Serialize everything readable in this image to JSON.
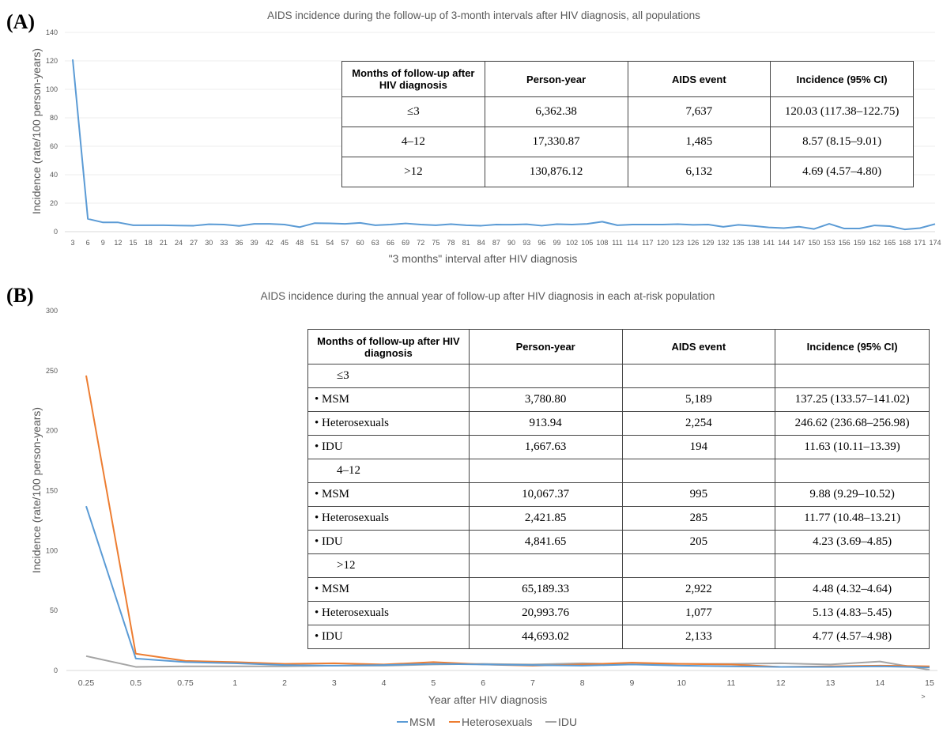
{
  "chart_data": [
    {
      "type": "line",
      "panel_label": "(A)",
      "title": "AIDS incidence during the follow-up of 3-month intervals after HIV diagnosis,  all populations",
      "xlabel": "\"3 months\" interval after HIV diagnosis",
      "ylabel": "Incidence (rate/100 person-years)",
      "ylim": [
        0,
        140
      ],
      "yticks": [
        0,
        20,
        40,
        60,
        80,
        100,
        120,
        140
      ],
      "grid": true,
      "x": [
        3,
        6,
        9,
        12,
        15,
        18,
        21,
        24,
        27,
        30,
        33,
        36,
        39,
        42,
        45,
        48,
        51,
        54,
        57,
        60,
        63,
        66,
        69,
        72,
        75,
        78,
        81,
        84,
        87,
        90,
        93,
        96,
        99,
        102,
        105,
        108,
        111,
        114,
        117,
        120,
        123,
        126,
        129,
        132,
        135,
        138,
        141,
        144,
        147,
        150,
        153,
        156,
        159,
        162,
        165,
        168,
        171,
        174
      ],
      "series": [
        {
          "color": "#5b9bd5",
          "values": [
            121,
            9,
            6.5,
            6.5,
            4.5,
            4.5,
            4.5,
            4.3,
            4.2,
            5.2,
            5,
            4,
            5.5,
            5.5,
            5,
            3.2,
            6,
            5.8,
            5.5,
            6.2,
            4.5,
            5,
            5.8,
            5,
            4.5,
            5.3,
            4.5,
            4.2,
            5,
            4.9,
            5.2,
            4.2,
            5.3,
            5,
            5.5,
            7,
            4.5,
            5,
            5,
            5,
            5.3,
            4.8,
            5,
            3.4,
            4.8,
            4,
            3,
            2.5,
            3.5,
            1.9,
            5.5,
            2.2,
            2.2,
            4.4,
            3.9,
            1.6,
            2.5,
            5.4
          ]
        }
      ],
      "table": {
        "headers": [
          "Months of follow-up after HIV diagnosis",
          "Person-year",
          "AIDS event",
          "Incidence (95% CI)"
        ],
        "rows": [
          [
            "≤3",
            "6,362.38",
            "7,637",
            "120.03 (117.38–122.75)"
          ],
          [
            "4–12",
            "17,330.87",
            "1,485",
            "8.57 (8.15–9.01)"
          ],
          [
            ">12",
            "130,876.12",
            "6,132",
            "4.69 (4.57–4.80)"
          ]
        ]
      }
    },
    {
      "type": "line",
      "panel_label": "(B)",
      "title": "AIDS incidence during the annual year of follow-up after HIV diagnosis in each at-risk population",
      "xlabel": "Year after HIV diagnosis",
      "ylabel": "Incidence (rate/100 person-years)",
      "ylim": [
        0,
        300
      ],
      "yticks": [
        0,
        50,
        100,
        150,
        200,
        250,
        300
      ],
      "grid": false,
      "categories": [
        "0.25",
        "0.5",
        "0.75",
        "1",
        "2",
        "3",
        "4",
        "5",
        "6",
        "7",
        "8",
        "9",
        "10",
        "11",
        "12",
        "13",
        "14",
        "15"
      ],
      "extra_tick": ">",
      "legend_position": "bottom",
      "series": [
        {
          "name": "MSM",
          "color": "#5b9bd5",
          "values": [
            137,
            10,
            7,
            6,
            4.5,
            4,
            4.5,
            5.5,
            5,
            4.5,
            4,
            5,
            4,
            3.5,
            3,
            3,
            3.5,
            2.5
          ]
        },
        {
          "name": "Heterosexuals",
          "color": "#ed7d31",
          "values": [
            246,
            14,
            8,
            7,
            5.5,
            6,
            5,
            7,
            5,
            4,
            5,
            6.5,
            5.5,
            5,
            3,
            3.5,
            4,
            3.5
          ]
        },
        {
          "name": "IDU",
          "color": "#a5a5a5",
          "values": [
            12,
            3,
            3.5,
            3.5,
            3.5,
            4,
            4,
            5,
            5.5,
            5,
            6,
            5,
            5.5,
            5.5,
            6,
            5,
            7.5,
            0.5
          ]
        }
      ],
      "table": {
        "headers": [
          "Months of follow-up after HIV diagnosis",
          "Person-year",
          "AIDS event",
          "Incidence (95% CI)"
        ],
        "groups": [
          {
            "label": "≤3",
            "rows": [
              [
                "• MSM",
                "3,780.80",
                "5,189",
                "137.25 (133.57–141.02)"
              ],
              [
                "• Heterosexuals",
                "913.94",
                "2,254",
                "246.62 (236.68–256.98)"
              ],
              [
                "• IDU",
                "1,667.63",
                "194",
                "11.63 (10.11–13.39)"
              ]
            ]
          },
          {
            "label": "4–12",
            "rows": [
              [
                "• MSM",
                "10,067.37",
                "995",
                "9.88 (9.29–10.52)"
              ],
              [
                "• Heterosexuals",
                "2,421.85",
                "285",
                "11.77 (10.48–13.21)"
              ],
              [
                "• IDU",
                "4,841.65",
                "205",
                "4.23 (3.69–4.85)"
              ]
            ]
          },
          {
            "label": ">12",
            "rows": [
              [
                "• MSM",
                "65,189.33",
                "2,922",
                "4.48 (4.32–4.64)"
              ],
              [
                "• Heterosexuals",
                "20,993.76",
                "1,077",
                "5.13 (4.83–5.45)"
              ],
              [
                "• IDU",
                "44,693.02",
                "2,133",
                "4.77 (4.57–4.98)"
              ]
            ]
          }
        ]
      }
    }
  ]
}
